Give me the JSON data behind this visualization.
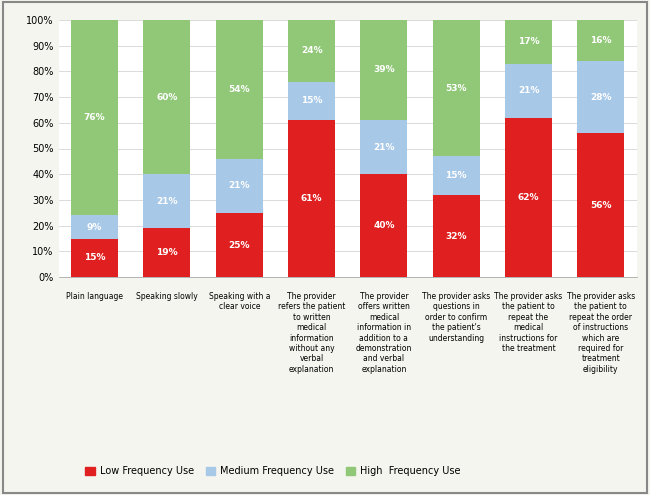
{
  "categories": [
    "Plain language",
    "Speaking slowly",
    "Speaking with a\nclear voice",
    "The provider\nrefers the patient\nto written\nmedical\ninformation\nwithout any\nverbal\nexplanation",
    "The provider\noffers written\nmedical\ninformation in\naddition to a\ndemonstration\nand verbal\nexplanation",
    "The provider asks\nquestions in\norder to confirm\nthe patient's\nunderstanding",
    "The provider asks\nthe patient to\nrepeat the\nmedical\ninstructions for\nthe treatment",
    "The provider asks\nthe patient to\nrepeat the order\nof instructions\nwhich are\nrequired for\ntreatment\neligibility"
  ],
  "low": [
    15,
    19,
    25,
    61,
    40,
    32,
    62,
    56
  ],
  "medium": [
    9,
    21,
    21,
    15,
    21,
    15,
    21,
    28
  ],
  "high": [
    76,
    60,
    54,
    24,
    39,
    53,
    17,
    16
  ],
  "low_color": "#e02020",
  "medium_color": "#a8c8e8",
  "high_color": "#90c878",
  "background_color": "#f5f5f0",
  "plot_bg_color": "#ffffff",
  "ylabel": "",
  "ylim": [
    0,
    100
  ],
  "legend_labels": [
    "Low Frequency Use",
    "Medium Frequency Use",
    "High  Frequency Use"
  ],
  "bar_width": 0.65,
  "title": ""
}
